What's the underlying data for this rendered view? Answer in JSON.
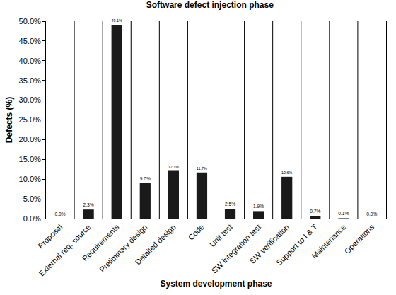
{
  "chart_data": {
    "type": "bar",
    "title": "Software defect injection phase",
    "x_label": "System development phase",
    "y_label": "Defects (%)",
    "categories": [
      "Proposal",
      "External req. source",
      "Requirements",
      "Preliminary design",
      "Detailed design",
      "Code",
      "Unit test",
      "SW integration test",
      "SW verification",
      "Support to I & T",
      "Maintenance",
      "Operations"
    ],
    "values": [
      0.0,
      2.3,
      49.1,
      9.0,
      12.1,
      11.7,
      2.5,
      1.9,
      10.6,
      0.7,
      0.1,
      0.0
    ],
    "value_labels": [
      "0.0%",
      "2.3%",
      "49.1%",
      "9.0%",
      "12.1%",
      "11.7%",
      "2.5%",
      "1.9%",
      "10.6%",
      "0.7%",
      "0.1%",
      "0.0%"
    ],
    "data_labels": true,
    "color": "#1a1a1a",
    "ylim": [
      0,
      50
    ],
    "yticks": [
      {
        "value": 0,
        "label": "0.0%"
      },
      {
        "value": 5,
        "label": "5.0%"
      },
      {
        "value": 10,
        "label": "10.0%"
      },
      {
        "value": 15,
        "label": "15.0%"
      },
      {
        "value": 20,
        "label": "20.0%"
      },
      {
        "value": 25,
        "label": "25.0%"
      },
      {
        "value": 30,
        "label": "30.0%"
      },
      {
        "value": 35,
        "label": "35.0%"
      },
      {
        "value": 40,
        "label": "40.0%"
      },
      {
        "value": 45,
        "label": "45.0%"
      },
      {
        "value": 50,
        "label": "50.0%"
      }
    ],
    "grid": true
  }
}
